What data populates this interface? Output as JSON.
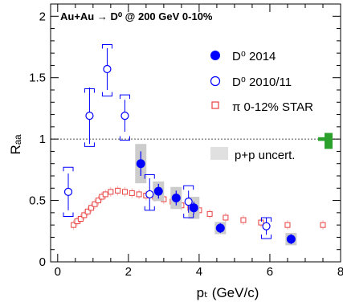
{
  "chart_data": {
    "type": "scatter",
    "title": "Au+Au → D⁰ @ 200 GeV 0-10%",
    "xlabel": "pₜ (GeV/c)",
    "ylabel": "Rₐₐ",
    "xlim": [
      -0.2,
      8.0
    ],
    "ylim": [
      0,
      2.1
    ],
    "xticks": [
      0,
      2,
      4,
      6,
      8
    ],
    "yticks": [
      0,
      0.5,
      1,
      1.5,
      2
    ],
    "reference_line": 1.0,
    "legend_position": "right",
    "colors": {
      "d2014": "#0000ff",
      "d2010": "#0000ff",
      "pion": "#e84040",
      "pp_box": "#e0e0e0",
      "global_uncert": "#2ca02c",
      "sys_box": "#cccccc"
    },
    "series": [
      {
        "key": "d2014",
        "name": "D⁰ 2014",
        "marker": "filled-circle",
        "points": [
          {
            "x": 2.35,
            "y": 0.8,
            "stat": 0.1,
            "sys": 0.16
          },
          {
            "x": 2.85,
            "y": 0.575,
            "stat": 0.06,
            "sys": 0.08
          },
          {
            "x": 3.35,
            "y": 0.52,
            "stat": 0.06,
            "sys": 0.09
          },
          {
            "x": 3.85,
            "y": 0.44,
            "stat": 0.05,
            "sys": 0.09
          },
          {
            "x": 4.6,
            "y": 0.275,
            "stat": 0.04,
            "sys": 0.05
          },
          {
            "x": 6.6,
            "y": 0.185,
            "stat": 0.04,
            "sys": 0.05
          }
        ]
      },
      {
        "key": "d2010",
        "name": "D⁰ 2010/11",
        "marker": "open-circle",
        "points": [
          {
            "x": 0.3,
            "y": 0.57,
            "stat": 0.15,
            "sys_lo": 0.2,
            "sys_hi": 0.2
          },
          {
            "x": 0.9,
            "y": 1.19,
            "stat": 0.23,
            "sys_lo": 0.25,
            "sys_hi": 0.22
          },
          {
            "x": 1.4,
            "y": 1.57,
            "stat": 0.17,
            "sys_lo": 0.22,
            "sys_hi": 0.2
          },
          {
            "x": 1.9,
            "y": 1.19,
            "stat": 0.13,
            "sys_lo": 0.2,
            "sys_hi": 0.17
          },
          {
            "x": 2.6,
            "y": 0.55,
            "stat": 0.13,
            "sys_lo": 0.13,
            "sys_hi": 0.16
          },
          {
            "x": 3.7,
            "y": 0.49,
            "stat": 0.09,
            "sys_lo": 0.13,
            "sys_hi": 0.13
          },
          {
            "x": 5.9,
            "y": 0.29,
            "stat": 0.07,
            "sys_lo": 0.1,
            "sys_hi": 0.07
          }
        ]
      },
      {
        "key": "pion",
        "name": "π 0-12% STAR",
        "marker": "open-square",
        "points": [
          {
            "x": 0.45,
            "y": 0.3
          },
          {
            "x": 0.55,
            "y": 0.33
          },
          {
            "x": 0.65,
            "y": 0.35
          },
          {
            "x": 0.75,
            "y": 0.38
          },
          {
            "x": 0.85,
            "y": 0.41
          },
          {
            "x": 0.95,
            "y": 0.44
          },
          {
            "x": 1.05,
            "y": 0.47
          },
          {
            "x": 1.15,
            "y": 0.5
          },
          {
            "x": 1.25,
            "y": 0.53
          },
          {
            "x": 1.35,
            "y": 0.55
          },
          {
            "x": 1.5,
            "y": 0.57
          },
          {
            "x": 1.7,
            "y": 0.58
          },
          {
            "x": 1.9,
            "y": 0.57
          },
          {
            "x": 2.1,
            "y": 0.56
          },
          {
            "x": 2.3,
            "y": 0.55
          },
          {
            "x": 2.5,
            "y": 0.54
          },
          {
            "x": 2.75,
            "y": 0.53
          },
          {
            "x": 3.0,
            "y": 0.51
          },
          {
            "x": 3.25,
            "y": 0.49
          },
          {
            "x": 3.5,
            "y": 0.46
          },
          {
            "x": 3.75,
            "y": 0.44
          },
          {
            "x": 4.0,
            "y": 0.42
          },
          {
            "x": 4.3,
            "y": 0.39
          },
          {
            "x": 4.75,
            "y": 0.36
          },
          {
            "x": 5.25,
            "y": 0.34
          },
          {
            "x": 5.75,
            "y": 0.32
          },
          {
            "x": 6.5,
            "y": 0.3
          },
          {
            "x": 7.5,
            "y": 0.3
          }
        ]
      }
    ],
    "pp_uncertainty_label": "p+p uncert."
  }
}
